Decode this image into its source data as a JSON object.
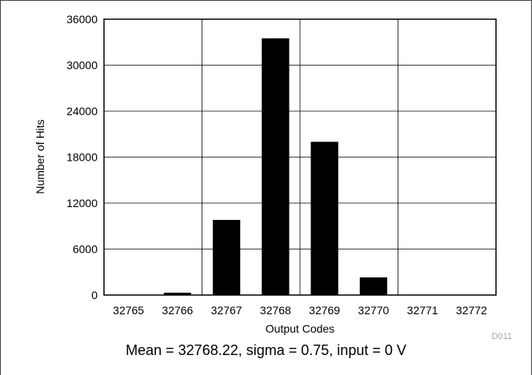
{
  "chart_data": {
    "type": "bar",
    "categories": [
      "32765",
      "32766",
      "32767",
      "32768",
      "32769",
      "32770",
      "32771",
      "32772"
    ],
    "values": [
      0,
      300,
      9800,
      33500,
      20000,
      2300,
      0,
      0
    ],
    "xlabel": "Output Codes",
    "ylabel": "Number of Hits",
    "ylim": [
      0,
      36000
    ],
    "yticks": [
      "0",
      "6000",
      "12000",
      "18000",
      "24000",
      "30000",
      "36000"
    ],
    "grid": true,
    "bar_color": "#000000"
  },
  "caption": "Mean = 32768.22, sigma = 0.75, input = 0 V",
  "figure_code": "D011"
}
